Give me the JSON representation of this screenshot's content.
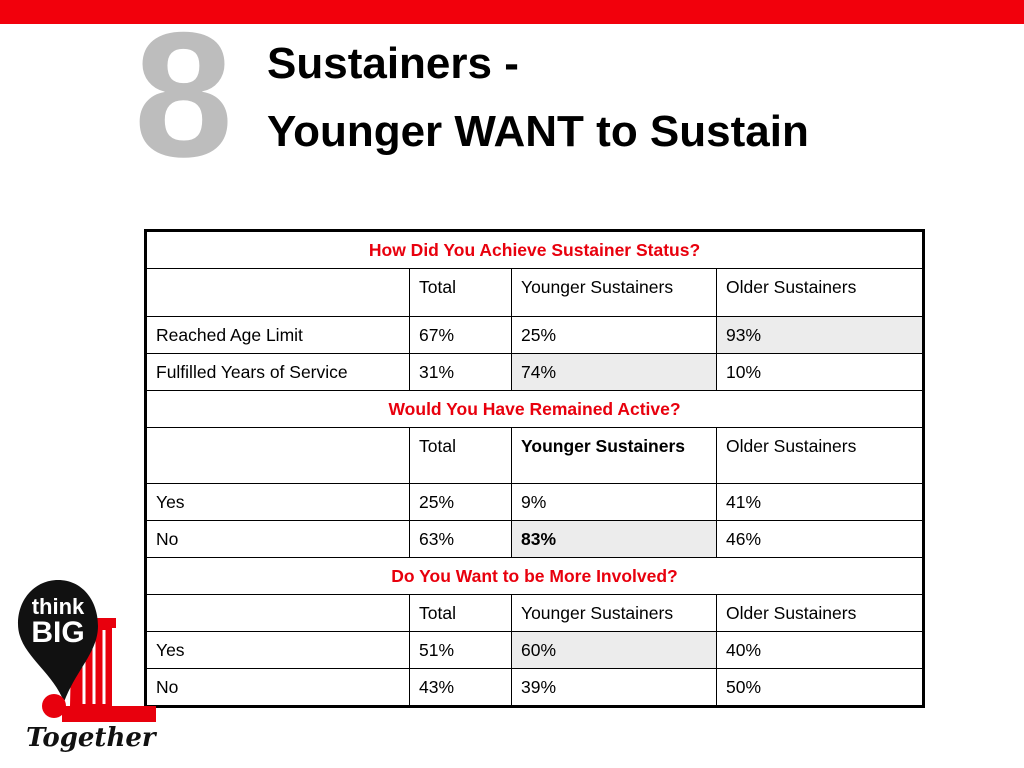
{
  "slide": {
    "number": "8",
    "title_line1": "Sustainers -",
    "title_line2": "Younger WANT to Sustain"
  },
  "colors": {
    "accent_red": "#f2000c",
    "section_red": "#e8000d",
    "highlight_gray": "#ececec",
    "number_gray": "#bdbdbd"
  },
  "table": {
    "sections": [
      {
        "heading": "How Did You Achieve Sustainer Status?",
        "columns": [
          "",
          "Total",
          "Younger Sustainers",
          "Older Sustainers"
        ],
        "rows": [
          {
            "label": "Reached Age Limit",
            "total": "67%",
            "younger": "25%",
            "older": "93%"
          },
          {
            "label": "Fulfilled Years of Service",
            "total": "31%",
            "younger": "74%",
            "older": "10%"
          }
        ]
      },
      {
        "heading": "Would You Have Remained Active?",
        "columns": [
          "",
          "Total",
          "Younger Sustainers",
          "Older Sustainers"
        ],
        "rows": [
          {
            "label": "Yes",
            "total": "25%",
            "younger": "9%",
            "older": "41%"
          },
          {
            "label": "No",
            "total": "63%",
            "younger": "83%",
            "older": "46%"
          }
        ]
      },
      {
        "heading": "Do You Want to be More Involved?",
        "columns": [
          "",
          "Total",
          "Younger Sustainers",
          "Older Sustainers"
        ],
        "rows": [
          {
            "label": "Yes",
            "total": "51%",
            "younger": "60%",
            "older": "40%"
          },
          {
            "label": "No",
            "total": "43%",
            "younger": "39%",
            "older": "50%"
          }
        ]
      }
    ]
  },
  "logo": {
    "line1": "think",
    "line2": "BIG",
    "script": "Together"
  }
}
